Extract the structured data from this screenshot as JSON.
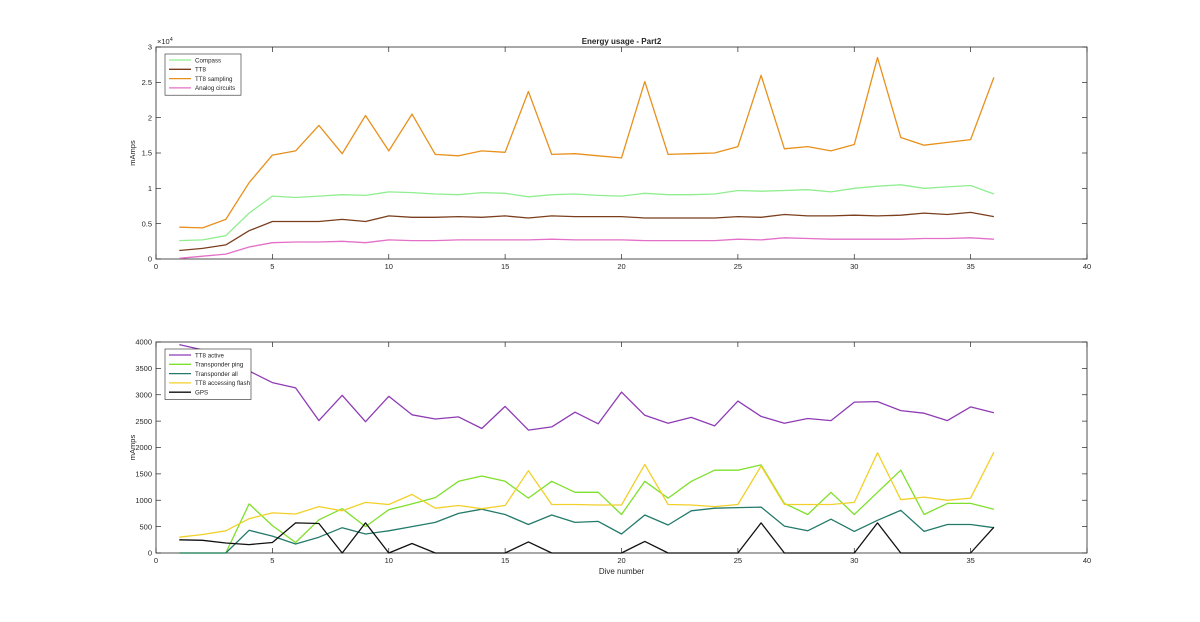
{
  "figure": {
    "background": "#ffffff"
  },
  "chart_data": [
    {
      "type": "line",
      "title": "Energy usage - Part2",
      "xlabel": "",
      "ylabel": "mAmps",
      "exponent_label": "×10",
      "exponent_power": "4",
      "xlim": [
        0,
        40
      ],
      "ylim": [
        0,
        30000
      ],
      "xticks": [
        0,
        5,
        10,
        15,
        20,
        25,
        30,
        35,
        40
      ],
      "yticks": [
        0,
        5000,
        10000,
        15000,
        20000,
        25000,
        30000
      ],
      "ytick_labels": [
        "0",
        "0.5",
        "1",
        "1.5",
        "2",
        "2.5",
        "3"
      ],
      "legend_position": "top-left",
      "grid": false,
      "x": [
        1,
        2,
        3,
        4,
        5,
        6,
        7,
        8,
        9,
        10,
        11,
        12,
        13,
        14,
        15,
        16,
        17,
        18,
        19,
        20,
        21,
        22,
        23,
        24,
        25,
        26,
        27,
        28,
        29,
        30,
        31,
        32,
        33,
        34,
        35,
        36
      ],
      "series": [
        {
          "name": "Compass",
          "color": "#90ee90",
          "values": [
            2600,
            2700,
            3300,
            6500,
            8900,
            8700,
            8900,
            9100,
            9000,
            9500,
            9400,
            9200,
            9100,
            9400,
            9300,
            8800,
            9100,
            9200,
            9000,
            8900,
            9300,
            9100,
            9100,
            9200,
            9700,
            9600,
            9700,
            9800,
            9500,
            10000,
            10300,
            10500,
            10000,
            10200,
            10400,
            9200
          ]
        },
        {
          "name": "TT8",
          "color": "#7b3f1e",
          "values": [
            1200,
            1500,
            2000,
            4000,
            5300,
            5300,
            5300,
            5600,
            5300,
            6100,
            5900,
            5900,
            6000,
            5900,
            6100,
            5800,
            6100,
            6000,
            6000,
            6000,
            5800,
            5800,
            5800,
            5800,
            6000,
            5900,
            6300,
            6100,
            6100,
            6200,
            6100,
            6200,
            6500,
            6300,
            6600,
            6000
          ]
        },
        {
          "name": "TT8 sampling",
          "color": "#e8901c",
          "values": [
            4500,
            4400,
            5600,
            10800,
            14700,
            15300,
            18900,
            14900,
            20300,
            15300,
            20500,
            14800,
            14600,
            15300,
            15100,
            23700,
            14800,
            14900,
            14600,
            14300,
            25100,
            14800,
            14900,
            15000,
            15900,
            26000,
            15600,
            15900,
            15300,
            16200,
            28500,
            17200,
            16100,
            16500,
            16900,
            25700
          ]
        },
        {
          "name": "Analog circuits",
          "color": "#e36fc7",
          "values": [
            100,
            400,
            700,
            1700,
            2300,
            2400,
            2400,
            2500,
            2300,
            2700,
            2600,
            2600,
            2700,
            2700,
            2700,
            2700,
            2800,
            2700,
            2700,
            2700,
            2600,
            2600,
            2600,
            2600,
            2800,
            2700,
            3000,
            2900,
            2800,
            2800,
            2800,
            2800,
            2900,
            2900,
            3000,
            2800
          ]
        }
      ]
    },
    {
      "type": "line",
      "title": "",
      "xlabel": "Dive number",
      "ylabel": "mAmps",
      "xlim": [
        0,
        40
      ],
      "ylim": [
        0,
        4000
      ],
      "xticks": [
        0,
        5,
        10,
        15,
        20,
        25,
        30,
        35,
        40
      ],
      "yticks": [
        0,
        500,
        1000,
        1500,
        2000,
        2500,
        3000,
        3500,
        4000
      ],
      "ytick_labels": [
        "0",
        "500",
        "1000",
        "1500",
        "2000",
        "2500",
        "3000",
        "3500",
        "4000"
      ],
      "legend_position": "top-left",
      "grid": false,
      "x": [
        1,
        2,
        3,
        4,
        5,
        6,
        7,
        8,
        9,
        10,
        11,
        12,
        13,
        14,
        15,
        16,
        17,
        18,
        19,
        20,
        21,
        22,
        23,
        24,
        25,
        26,
        27,
        28,
        29,
        30,
        31,
        32,
        33,
        34,
        35,
        36
      ],
      "series": [
        {
          "name": "TT8 active",
          "color": "#8e3cb4",
          "values": [
            3950,
            3850,
            3750,
            3450,
            3230,
            3130,
            2510,
            2990,
            2490,
            2970,
            2620,
            2540,
            2580,
            2360,
            2780,
            2330,
            2390,
            2670,
            2450,
            3050,
            2610,
            2460,
            2570,
            2410,
            2880,
            2590,
            2460,
            2550,
            2510,
            2860,
            2870,
            2700,
            2650,
            2510,
            2770,
            2660
          ]
        },
        {
          "name": "Transponder ping",
          "color": "#7ee02a",
          "values": [
            0,
            0,
            0,
            930,
            520,
            200,
            630,
            840,
            500,
            820,
            930,
            1050,
            1360,
            1460,
            1360,
            1040,
            1360,
            1150,
            1150,
            730,
            1360,
            1040,
            1360,
            1570,
            1570,
            1670,
            940,
            730,
            1150,
            730,
            1150,
            1570,
            730,
            940,
            940,
            830
          ]
        },
        {
          "name": "Transponder all",
          "color": "#237a6a",
          "values": [
            0,
            0,
            0,
            430,
            320,
            170,
            300,
            480,
            360,
            420,
            500,
            580,
            750,
            830,
            730,
            540,
            720,
            580,
            600,
            360,
            720,
            530,
            800,
            850,
            860,
            870,
            510,
            420,
            640,
            410,
            620,
            810,
            410,
            540,
            540,
            480
          ]
        },
        {
          "name": "TT8 accessing flash",
          "color": "#f2d02a",
          "values": [
            300,
            350,
            420,
            650,
            760,
            740,
            880,
            800,
            960,
            920,
            1110,
            850,
            900,
            840,
            900,
            1560,
            920,
            920,
            910,
            910,
            1680,
            920,
            910,
            880,
            920,
            1650,
            920,
            920,
            920,
            960,
            1900,
            1010,
            1060,
            1000,
            1040,
            1910
          ]
        },
        {
          "name": "GPS",
          "color": "#111111",
          "values": [
            250,
            240,
            190,
            160,
            200,
            570,
            560,
            0,
            570,
            0,
            180,
            0,
            0,
            0,
            0,
            210,
            0,
            0,
            0,
            0,
            220,
            0,
            0,
            0,
            0,
            570,
            0,
            0,
            0,
            0,
            570,
            0,
            0,
            0,
            0,
            490
          ]
        }
      ]
    }
  ]
}
